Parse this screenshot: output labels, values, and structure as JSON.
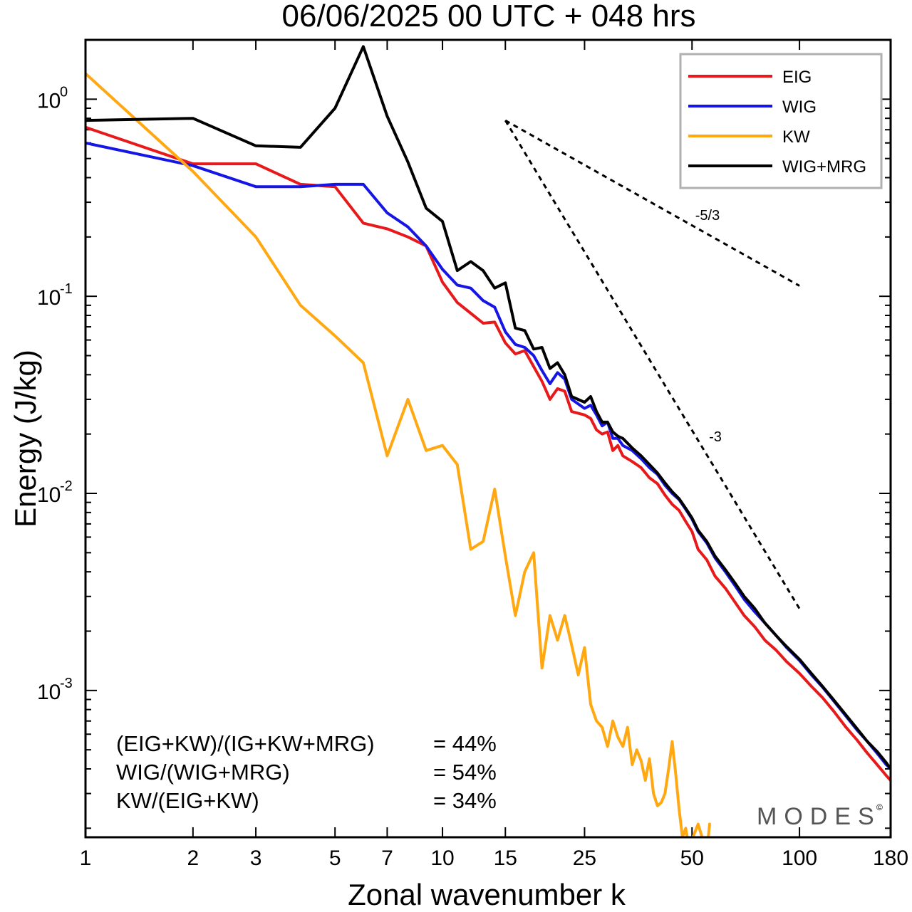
{
  "chart_data": {
    "type": "line",
    "title": "06/06/2025  00 UTC  + 048 hrs",
    "xlabel": "Zonal wavenumber k",
    "ylabel": "Energy (J/kg)",
    "xscale": "log",
    "yscale": "log",
    "xlim": [
      1,
      180
    ],
    "ylim": [
      0.00018,
      2.0
    ],
    "xticks": [
      1,
      2,
      3,
      5,
      7,
      10,
      15,
      25,
      50,
      100,
      180
    ],
    "yticks": [
      {
        "base": "10",
        "exp": "0",
        "value": 1
      },
      {
        "base": "10",
        "exp": "-1",
        "value": 0.1
      },
      {
        "base": "10",
        "exp": "-2",
        "value": 0.01
      },
      {
        "base": "10",
        "exp": "-3",
        "value": 0.001
      }
    ],
    "legend_position": "top-right",
    "series": [
      {
        "name": "EIG",
        "color": "#e8191a",
        "points": [
          [
            1,
            0.72
          ],
          [
            2,
            0.47
          ],
          [
            3,
            0.47
          ],
          [
            4,
            0.37
          ],
          [
            5,
            0.36
          ],
          [
            6,
            0.235
          ],
          [
            7,
            0.22
          ],
          [
            8,
            0.2
          ],
          [
            9,
            0.18
          ],
          [
            10,
            0.118
          ],
          [
            11,
            0.093
          ],
          [
            12,
            0.082
          ],
          [
            13,
            0.073
          ],
          [
            14,
            0.074
          ],
          [
            15,
            0.058
          ],
          [
            16,
            0.051
          ],
          [
            17,
            0.053
          ],
          [
            18,
            0.044
          ],
          [
            19,
            0.037
          ],
          [
            20,
            0.03
          ],
          [
            21,
            0.034
          ],
          [
            22,
            0.033
          ],
          [
            23,
            0.026
          ],
          [
            25,
            0.025
          ],
          [
            26,
            0.024
          ],
          [
            27,
            0.021
          ],
          [
            28,
            0.02
          ],
          [
            29,
            0.0205
          ],
          [
            30,
            0.0165
          ],
          [
            31,
            0.0175
          ],
          [
            32,
            0.0155
          ],
          [
            34,
            0.0145
          ],
          [
            36,
            0.0135
          ],
          [
            38,
            0.012
          ],
          [
            40,
            0.0112
          ],
          [
            42,
            0.0098
          ],
          [
            44,
            0.0088
          ],
          [
            46,
            0.0082
          ],
          [
            48,
            0.0072
          ],
          [
            50,
            0.0064
          ],
          [
            52,
            0.0052
          ],
          [
            55,
            0.0046
          ],
          [
            58,
            0.0038
          ],
          [
            62,
            0.0033
          ],
          [
            66,
            0.0028
          ],
          [
            70,
            0.0024
          ],
          [
            75,
            0.0021
          ],
          [
            80,
            0.0018
          ],
          [
            86,
            0.0016
          ],
          [
            92,
            0.0014
          ],
          [
            100,
            0.00122
          ],
          [
            108,
            0.00105
          ],
          [
            116,
            0.00092
          ],
          [
            125,
            0.00078
          ],
          [
            135,
            0.00065
          ],
          [
            145,
            0.00056
          ],
          [
            155,
            0.00048
          ],
          [
            165,
            0.00042
          ],
          [
            175,
            0.00037
          ],
          [
            180,
            0.00035
          ]
        ]
      },
      {
        "name": "WIG",
        "color": "#1515e6",
        "points": [
          [
            1,
            0.6
          ],
          [
            2,
            0.46
          ],
          [
            3,
            0.36
          ],
          [
            4,
            0.36
          ],
          [
            5,
            0.37
          ],
          [
            6,
            0.37
          ],
          [
            7,
            0.265
          ],
          [
            8,
            0.225
          ],
          [
            9,
            0.18
          ],
          [
            10,
            0.137
          ],
          [
            11,
            0.114
          ],
          [
            12,
            0.11
          ],
          [
            13,
            0.095
          ],
          [
            14,
            0.088
          ],
          [
            15,
            0.066
          ],
          [
            16,
            0.057
          ],
          [
            17,
            0.055
          ],
          [
            18,
            0.05
          ],
          [
            19,
            0.042
          ],
          [
            20,
            0.036
          ],
          [
            21,
            0.041
          ],
          [
            22,
            0.038
          ],
          [
            23,
            0.03
          ],
          [
            25,
            0.027
          ],
          [
            26,
            0.028
          ],
          [
            27,
            0.025
          ],
          [
            28,
            0.022
          ],
          [
            29,
            0.023
          ],
          [
            30,
            0.019
          ],
          [
            31,
            0.019
          ],
          [
            32,
            0.0175
          ],
          [
            34,
            0.0165
          ],
          [
            36,
            0.015
          ],
          [
            38,
            0.0135
          ],
          [
            40,
            0.0125
          ],
          [
            42,
            0.011
          ],
          [
            44,
            0.01
          ],
          [
            46,
            0.0093
          ],
          [
            48,
            0.0083
          ],
          [
            50,
            0.0074
          ],
          [
            52,
            0.0064
          ],
          [
            55,
            0.0056
          ],
          [
            58,
            0.0047
          ],
          [
            62,
            0.004
          ],
          [
            66,
            0.0034
          ],
          [
            70,
            0.0029
          ],
          [
            75,
            0.0025
          ],
          [
            80,
            0.0022
          ],
          [
            86,
            0.0019
          ],
          [
            92,
            0.00165
          ],
          [
            100,
            0.00142
          ],
          [
            108,
            0.0012
          ],
          [
            116,
            0.00104
          ],
          [
            125,
            0.00088
          ],
          [
            135,
            0.00074
          ],
          [
            145,
            0.00063
          ],
          [
            155,
            0.00055
          ],
          [
            165,
            0.00048
          ],
          [
            175,
            0.00042
          ],
          [
            180,
            0.0004
          ]
        ]
      },
      {
        "name": "KW",
        "color": "#ffa812",
        "points": [
          [
            1,
            1.35
          ],
          [
            2,
            0.43
          ],
          [
            3,
            0.2
          ],
          [
            4,
            0.09
          ],
          [
            5,
            0.063
          ],
          [
            6,
            0.046
          ],
          [
            7,
            0.0155
          ],
          [
            8,
            0.03
          ],
          [
            9,
            0.0165
          ],
          [
            10,
            0.0175
          ],
          [
            11,
            0.014
          ],
          [
            12,
            0.0052
          ],
          [
            13,
            0.0057
          ],
          [
            14,
            0.0105
          ],
          [
            15,
            0.0048
          ],
          [
            16,
            0.0024
          ],
          [
            17,
            0.004
          ],
          [
            18,
            0.005
          ],
          [
            19,
            0.0013
          ],
          [
            20,
            0.0024
          ],
          [
            21,
            0.0018
          ],
          [
            22,
            0.0024
          ],
          [
            23,
            0.0017
          ],
          [
            24,
            0.0012
          ],
          [
            25,
            0.00165
          ],
          [
            26,
            0.00085
          ],
          [
            27,
            0.0007
          ],
          [
            28,
            0.00065
          ],
          [
            29,
            0.00052
          ],
          [
            30,
            0.0007
          ],
          [
            31,
            0.00058
          ],
          [
            32,
            0.00052
          ],
          [
            33,
            0.00065
          ],
          [
            34,
            0.00042
          ],
          [
            35,
            0.0005
          ],
          [
            36,
            0.00044
          ],
          [
            37,
            0.00035
          ],
          [
            38,
            0.00045
          ],
          [
            39,
            0.0003
          ],
          [
            40,
            0.00026
          ],
          [
            41,
            0.00027
          ],
          [
            42,
            0.0003
          ],
          [
            43,
            0.0004
          ],
          [
            44,
            0.00055
          ],
          [
            45,
            0.00038
          ],
          [
            46,
            0.00025
          ],
          [
            47,
            0.00018
          ],
          [
            48,
            0.0002
          ],
          [
            49,
            0.00016
          ],
          [
            52,
            0.00021
          ],
          [
            55,
            0.00015
          ],
          [
            56,
            0.00021
          ]
        ]
      },
      {
        "name": "WIG+MRG",
        "color": "#000000",
        "points": [
          [
            1,
            0.78
          ],
          [
            2,
            0.8
          ],
          [
            3,
            0.58
          ],
          [
            4,
            0.57
          ],
          [
            5,
            0.9
          ],
          [
            6,
            1.85
          ],
          [
            7,
            0.82
          ],
          [
            8,
            0.48
          ],
          [
            9,
            0.28
          ],
          [
            10,
            0.24
          ],
          [
            11,
            0.135
          ],
          [
            12,
            0.15
          ],
          [
            13,
            0.135
          ],
          [
            14,
            0.11
          ],
          [
            15,
            0.117
          ],
          [
            16,
            0.069
          ],
          [
            17,
            0.067
          ],
          [
            18,
            0.054
          ],
          [
            19,
            0.055
          ],
          [
            20,
            0.043
          ],
          [
            21,
            0.046
          ],
          [
            22,
            0.04
          ],
          [
            23,
            0.031
          ],
          [
            25,
            0.029
          ],
          [
            26,
            0.031
          ],
          [
            27,
            0.026
          ],
          [
            28,
            0.023
          ],
          [
            29,
            0.023
          ],
          [
            30,
            0.0205
          ],
          [
            31,
            0.0195
          ],
          [
            32,
            0.019
          ],
          [
            34,
            0.017
          ],
          [
            36,
            0.0155
          ],
          [
            38,
            0.014
          ],
          [
            40,
            0.0127
          ],
          [
            42,
            0.0113
          ],
          [
            44,
            0.0102
          ],
          [
            46,
            0.0094
          ],
          [
            48,
            0.0084
          ],
          [
            50,
            0.0075
          ],
          [
            52,
            0.0065
          ],
          [
            55,
            0.0057
          ],
          [
            58,
            0.0048
          ],
          [
            62,
            0.0041
          ],
          [
            66,
            0.0035
          ],
          [
            70,
            0.003
          ],
          [
            75,
            0.0026
          ],
          [
            80,
            0.0022
          ],
          [
            86,
            0.0019
          ],
          [
            92,
            0.00167
          ],
          [
            100,
            0.00144
          ],
          [
            108,
            0.00122
          ],
          [
            116,
            0.00105
          ],
          [
            125,
            0.00089
          ],
          [
            135,
            0.00075
          ],
          [
            145,
            0.00064
          ],
          [
            155,
            0.00055
          ],
          [
            165,
            0.00049
          ],
          [
            175,
            0.00043
          ],
          [
            180,
            0.0004
          ]
        ]
      }
    ],
    "reference_slopes": [
      {
        "label": "-5/3",
        "start": [
          15,
          0.78
        ],
        "end": [
          100,
          0.113
        ]
      },
      {
        "label": "-3",
        "start": [
          15,
          0.78
        ],
        "end": [
          100,
          0.0026
        ]
      }
    ],
    "annotations": [
      {
        "label": "(EIG+KW)/(IG+KW+MRG)",
        "value": "= 44%"
      },
      {
        "label": "WIG/(WIG+MRG)",
        "value": "= 54%"
      },
      {
        "label": "KW/(EIG+KW)",
        "value": "= 34%"
      }
    ],
    "logo": "MODES",
    "logo_mark": "©",
    "grid": false
  }
}
